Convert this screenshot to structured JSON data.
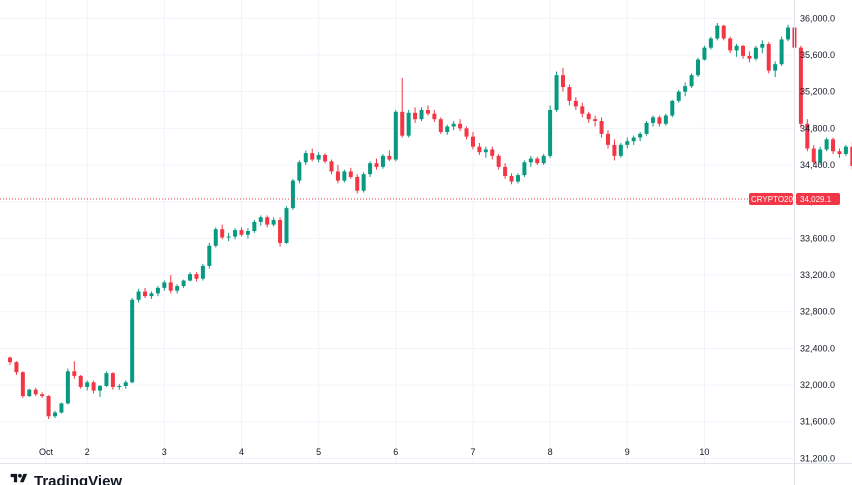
{
  "brand": {
    "name": "TradingView",
    "logo_icon": "tradingview-logo-icon"
  },
  "colors": {
    "up": "#089981",
    "down": "#f23645",
    "grid": "#f0f3fa",
    "text": "#131722",
    "last_price_line": "#f23645"
  },
  "chart_data": {
    "type": "candlestick",
    "symbol": "CRYPTO20",
    "last_price": "34,029.1",
    "last_price_value": 34029.1,
    "ylim": [
      31150,
      36200
    ],
    "y_ticks": [
      {
        "value": 36000,
        "label": "36,000.0"
      },
      {
        "value": 35600,
        "label": "35,600.0"
      },
      {
        "value": 35200,
        "label": "35,200.0"
      },
      {
        "value": 34800,
        "label": "34,800.0"
      },
      {
        "value": 34400,
        "label": "34,400.0"
      },
      {
        "value": 34000,
        "label": "34,000.0"
      },
      {
        "value": 33600,
        "label": "33,600.0"
      },
      {
        "value": 33200,
        "label": "33,200.0"
      },
      {
        "value": 32800,
        "label": "32,800.0"
      },
      {
        "value": 32400,
        "label": "32,400.0"
      },
      {
        "value": 32000,
        "label": "32,000.0"
      },
      {
        "value": 31600,
        "label": "31,600.0"
      },
      {
        "value": 31200,
        "label": "31,200.0"
      }
    ],
    "x_ticks": [
      "Oct",
      "2",
      "3",
      "4",
      "5",
      "6",
      "7",
      "8",
      "9",
      "10"
    ],
    "candles_per_day": 12,
    "grid": true,
    "candles": [
      [
        32300,
        32310,
        32220,
        32250
      ],
      [
        32250,
        32260,
        32110,
        32140
      ],
      [
        32140,
        32150,
        31860,
        31880
      ],
      [
        31880,
        31960,
        31870,
        31950
      ],
      [
        31950,
        31970,
        31880,
        31900
      ],
      [
        31900,
        31920,
        31860,
        31880
      ],
      [
        31880,
        31890,
        31630,
        31660
      ],
      [
        31660,
        31720,
        31640,
        31700
      ],
      [
        31700,
        31810,
        31690,
        31800
      ],
      [
        31800,
        32180,
        31790,
        32150
      ],
      [
        32150,
        32260,
        32070,
        32100
      ],
      [
        32100,
        32110,
        31960,
        31980
      ],
      [
        31980,
        32050,
        31940,
        32030
      ],
      [
        32030,
        32050,
        31910,
        31940
      ],
      [
        31940,
        32000,
        31870,
        31990
      ],
      [
        31990,
        32150,
        31980,
        32130
      ],
      [
        32130,
        32140,
        31950,
        31980
      ],
      [
        31980,
        32010,
        31950,
        31990
      ],
      [
        31990,
        32050,
        31960,
        32030
      ],
      [
        32030,
        32950,
        32020,
        32930
      ],
      [
        32930,
        33050,
        32900,
        33020
      ],
      [
        33020,
        33060,
        32950,
        32970
      ],
      [
        32970,
        33020,
        32940,
        33000
      ],
      [
        33000,
        33080,
        32970,
        33060
      ],
      [
        33060,
        33140,
        33030,
        33120
      ],
      [
        33120,
        33200,
        33000,
        33030
      ],
      [
        33030,
        33100,
        33000,
        33080
      ],
      [
        33080,
        33150,
        33060,
        33140
      ],
      [
        33140,
        33230,
        33130,
        33210
      ],
      [
        33210,
        33230,
        33130,
        33160
      ],
      [
        33160,
        33320,
        33140,
        33300
      ],
      [
        33300,
        33550,
        33270,
        33520
      ],
      [
        33520,
        33720,
        33500,
        33700
      ],
      [
        33700,
        33750,
        33590,
        33610
      ],
      [
        33610,
        33660,
        33570,
        33620
      ],
      [
        33620,
        33710,
        33590,
        33690
      ],
      [
        33690,
        33720,
        33620,
        33640
      ],
      [
        33640,
        33710,
        33600,
        33680
      ],
      [
        33680,
        33800,
        33660,
        33780
      ],
      [
        33780,
        33850,
        33740,
        33830
      ],
      [
        33830,
        33850,
        33720,
        33750
      ],
      [
        33750,
        33830,
        33730,
        33800
      ],
      [
        33800,
        33830,
        33510,
        33550
      ],
      [
        33550,
        33950,
        33540,
        33930
      ],
      [
        33930,
        34250,
        33910,
        34230
      ],
      [
        34230,
        34450,
        34200,
        34430
      ],
      [
        34430,
        34560,
        34400,
        34530
      ],
      [
        34530,
        34580,
        34440,
        34460
      ],
      [
        34460,
        34540,
        34430,
        34510
      ],
      [
        34510,
        34530,
        34420,
        34440
      ],
      [
        34440,
        34460,
        34300,
        34330
      ],
      [
        34330,
        34400,
        34200,
        34230
      ],
      [
        34230,
        34350,
        34210,
        34330
      ],
      [
        34330,
        34370,
        34250,
        34270
      ],
      [
        34270,
        34300,
        34090,
        34120
      ],
      [
        34120,
        34320,
        34100,
        34300
      ],
      [
        34300,
        34440,
        34270,
        34420
      ],
      [
        34420,
        34470,
        34350,
        34380
      ],
      [
        34380,
        34520,
        34360,
        34500
      ],
      [
        34500,
        34560,
        34440,
        34460
      ],
      [
        34460,
        35000,
        34440,
        34980
      ],
      [
        34980,
        35350,
        34700,
        34720
      ],
      [
        34720,
        35000,
        34700,
        34970
      ],
      [
        34970,
        35030,
        34860,
        34900
      ],
      [
        34900,
        35030,
        34880,
        35000
      ],
      [
        35000,
        35050,
        34940,
        34960
      ],
      [
        34960,
        35000,
        34870,
        34900
      ],
      [
        34900,
        34920,
        34740,
        34760
      ],
      [
        34760,
        34840,
        34730,
        34820
      ],
      [
        34820,
        34880,
        34780,
        34850
      ],
      [
        34850,
        34900,
        34770,
        34800
      ],
      [
        34800,
        34820,
        34680,
        34710
      ],
      [
        34710,
        34760,
        34570,
        34600
      ],
      [
        34600,
        34640,
        34510,
        34540
      ],
      [
        34540,
        34600,
        34480,
        34570
      ],
      [
        34570,
        34600,
        34460,
        34500
      ],
      [
        34500,
        34520,
        34350,
        34380
      ],
      [
        34380,
        34420,
        34250,
        34280
      ],
      [
        34280,
        34310,
        34190,
        34220
      ],
      [
        34220,
        34310,
        34200,
        34290
      ],
      [
        34290,
        34450,
        34270,
        34430
      ],
      [
        34430,
        34500,
        34380,
        34470
      ],
      [
        34470,
        34490,
        34400,
        34420
      ],
      [
        34420,
        34520,
        34400,
        34500
      ],
      [
        34500,
        35050,
        34480,
        35000
      ],
      [
        35000,
        35420,
        34980,
        35380
      ],
      [
        35380,
        35460,
        35200,
        35250
      ],
      [
        35250,
        35280,
        35050,
        35100
      ],
      [
        35100,
        35140,
        35000,
        35040
      ],
      [
        35040,
        35080,
        34920,
        34960
      ],
      [
        34960,
        34980,
        34860,
        34900
      ],
      [
        34900,
        34940,
        34820,
        34880
      ],
      [
        34880,
        34920,
        34700,
        34740
      ],
      [
        34740,
        34780,
        34580,
        34620
      ],
      [
        34620,
        34680,
        34450,
        34500
      ],
      [
        34500,
        34640,
        34480,
        34620
      ],
      [
        34620,
        34700,
        34580,
        34660
      ],
      [
        34660,
        34720,
        34620,
        34700
      ],
      [
        34700,
        34760,
        34660,
        34740
      ],
      [
        34740,
        34880,
        34720,
        34860
      ],
      [
        34860,
        34940,
        34820,
        34920
      ],
      [
        34920,
        34940,
        34820,
        34850
      ],
      [
        34850,
        34960,
        34830,
        34940
      ],
      [
        34940,
        35110,
        34920,
        35100
      ],
      [
        35100,
        35220,
        35080,
        35200
      ],
      [
        35200,
        35300,
        35150,
        35260
      ],
      [
        35260,
        35400,
        35240,
        35380
      ],
      [
        35380,
        35570,
        35360,
        35550
      ],
      [
        35550,
        35700,
        35540,
        35680
      ],
      [
        35680,
        35800,
        35660,
        35780
      ],
      [
        35780,
        35950,
        35760,
        35920
      ],
      [
        35920,
        35930,
        35760,
        35780
      ],
      [
        35780,
        35800,
        35620,
        35650
      ],
      [
        35650,
        35720,
        35580,
        35700
      ],
      [
        35700,
        35710,
        35560,
        35590
      ],
      [
        35590,
        35640,
        35520,
        35560
      ],
      [
        35560,
        35700,
        35540,
        35680
      ],
      [
        35680,
        35760,
        35620,
        35720
      ],
      [
        35720,
        35740,
        35400,
        35430
      ],
      [
        35430,
        35530,
        35360,
        35500
      ],
      [
        35500,
        35800,
        35480,
        35770
      ],
      [
        35770,
        35930,
        35750,
        35900
      ],
      [
        35900,
        35920,
        35650,
        35680
      ],
      [
        35680,
        35700,
        34800,
        34850
      ],
      [
        34850,
        34900,
        34550,
        34580
      ],
      [
        34580,
        34620,
        34400,
        34430
      ],
      [
        34430,
        34600,
        34400,
        34570
      ],
      [
        34570,
        34700,
        34550,
        34680
      ],
      [
        34680,
        34700,
        34520,
        34550
      ],
      [
        34550,
        34580,
        34480,
        34520
      ],
      [
        34520,
        34620,
        34500,
        34600
      ],
      [
        34600,
        34650,
        34350,
        34390
      ],
      [
        34390,
        34420,
        34220,
        34250
      ],
      [
        34250,
        34400,
        34180,
        34370
      ],
      [
        34370,
        34500,
        34350,
        34470
      ],
      [
        34470,
        34560,
        34440,
        34520
      ],
      [
        34520,
        34580,
        34480,
        34540
      ],
      [
        34540,
        34560,
        34470,
        34500
      ],
      [
        34500,
        34700,
        34480,
        34680
      ],
      [
        34680,
        34700,
        34540,
        34580
      ],
      [
        34580,
        34620,
        34480,
        34500
      ],
      [
        34500,
        34800,
        34480,
        34780
      ],
      [
        34780,
        35220,
        34760,
        35200
      ],
      [
        35200,
        35230,
        35110,
        35150
      ],
      [
        35150,
        35170,
        35060,
        35100
      ],
      [
        35100,
        35120,
        34980,
        35020
      ],
      [
        35020,
        35040,
        34800,
        34830
      ],
      [
        34830,
        34850,
        34600,
        34630
      ],
      [
        34630,
        34650,
        34230,
        34270
      ],
      [
        34270,
        34560,
        34250,
        34530
      ],
      [
        34530,
        34570,
        34470,
        34510
      ],
      [
        34510,
        34540,
        34410,
        34450
      ],
      [
        34450,
        34470,
        34270,
        34300
      ],
      [
        34300,
        34330,
        33950,
        33980
      ],
      [
        33980,
        34240,
        33960,
        34220
      ],
      [
        34220,
        34350,
        34180,
        34320
      ],
      [
        34320,
        34340,
        33790,
        33830
      ],
      [
        33830,
        33850,
        33510,
        33540
      ],
      [
        33540,
        33750,
        33520,
        33720
      ],
      [
        33720,
        33790,
        33690,
        33760
      ],
      [
        33760,
        33860,
        33740,
        33830
      ],
      [
        33830,
        34160,
        33810,
        34130
      ],
      [
        34130,
        34180,
        34070,
        34160
      ],
      [
        34160,
        34170,
        34060,
        34100
      ],
      [
        34100,
        34120,
        34040,
        34070
      ],
      [
        34070,
        34090,
        34010,
        34030
      ]
    ]
  }
}
